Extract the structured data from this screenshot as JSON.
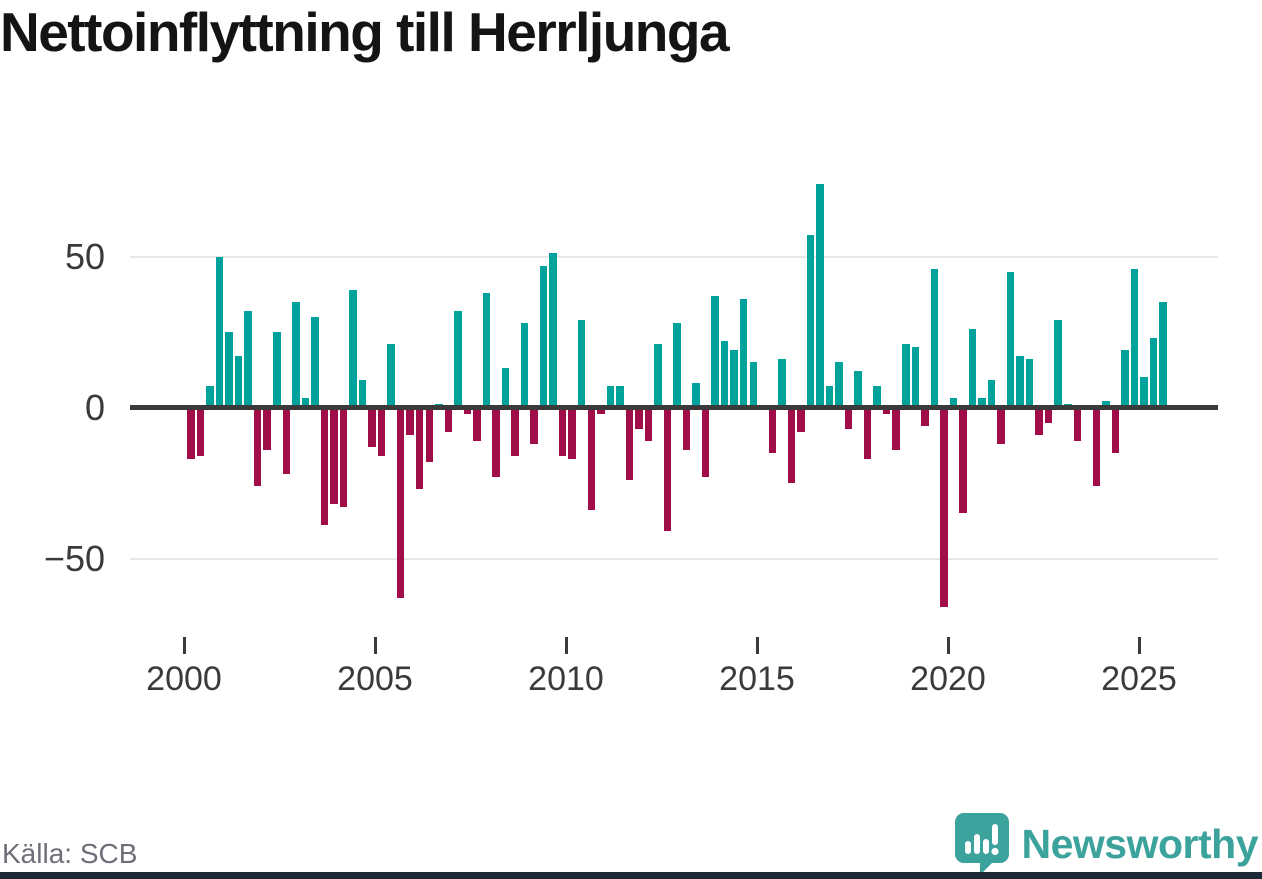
{
  "page": {
    "title": "Nettoinflyttning till Herrljunga",
    "source": "Källa: SCB"
  },
  "logo": {
    "brand": "Newsworthy",
    "icon": "newsworthy-speech-bubble-chart-icon"
  },
  "colors": {
    "positive_bar": "#00a39c",
    "negative_bar": "#a00d49",
    "axis": "#3a3a3a",
    "grid": "#e7e7e7",
    "labels": "#3a3a3a",
    "source_text": "#6f6f79",
    "brand_teal": "#3ba29c",
    "footer_bar": "#1d2935"
  },
  "chart_data": {
    "type": "bar",
    "title": "Nettoinflyttning till Herrljunga",
    "xlabel": "",
    "ylabel": "",
    "ylim": [
      -70,
      80
    ],
    "grid": "horizontal",
    "legend": "none",
    "bar_color_rule": "teal when positive, crimson when negative",
    "y_ticks": [
      {
        "label": "50",
        "value": 50
      },
      {
        "label": "0",
        "value": 0
      },
      {
        "label": "−50",
        "value": -50
      }
    ],
    "x_ticks": [
      "2000",
      "2005",
      "2010",
      "2015",
      "2020",
      "2025"
    ],
    "x": [
      "2000Q1",
      "2000Q2",
      "2000Q3",
      "2000Q4",
      "2001Q1",
      "2001Q2",
      "2001Q3",
      "2001Q4",
      "2002Q1",
      "2002Q2",
      "2002Q3",
      "2002Q4",
      "2003Q1",
      "2003Q2",
      "2003Q3",
      "2003Q4",
      "2004Q1",
      "2004Q2",
      "2004Q3",
      "2004Q4",
      "2005Q1",
      "2005Q2",
      "2005Q3",
      "2005Q4",
      "2006Q1",
      "2006Q2",
      "2006Q3",
      "2006Q4",
      "2007Q1",
      "2007Q2",
      "2007Q3",
      "2007Q4",
      "2008Q1",
      "2008Q2",
      "2008Q3",
      "2008Q4",
      "2009Q1",
      "2009Q2",
      "2009Q3",
      "2009Q4",
      "2010Q1",
      "2010Q2",
      "2010Q3",
      "2010Q4",
      "2011Q1",
      "2011Q2",
      "2011Q3",
      "2011Q4",
      "2012Q1",
      "2012Q2",
      "2012Q3",
      "2012Q4",
      "2013Q1",
      "2013Q2",
      "2013Q3",
      "2013Q4",
      "2014Q1",
      "2014Q2",
      "2014Q3",
      "2014Q4",
      "2015Q1",
      "2015Q2",
      "2015Q3",
      "2015Q4",
      "2016Q1",
      "2016Q2",
      "2016Q3",
      "2016Q4",
      "2017Q1",
      "2017Q2",
      "2017Q3",
      "2017Q4",
      "2018Q1",
      "2018Q2",
      "2018Q3",
      "2018Q4",
      "2019Q1",
      "2019Q2",
      "2019Q3",
      "2019Q4",
      "2020Q1",
      "2020Q2",
      "2020Q3",
      "2020Q4",
      "2021Q1",
      "2021Q2",
      "2021Q3",
      "2021Q4",
      "2022Q1",
      "2022Q2",
      "2022Q3",
      "2022Q4",
      "2023Q1",
      "2023Q2",
      "2023Q3",
      "2023Q4",
      "2024Q1",
      "2024Q2",
      "2024Q3",
      "2024Q4",
      "2025Q1",
      "2025Q2",
      "2025Q3"
    ],
    "values": [
      -17,
      -16,
      7,
      50,
      25,
      17,
      32,
      -26,
      -14,
      25,
      -22,
      35,
      3,
      30,
      -39,
      -32,
      -33,
      39,
      9,
      -13,
      -16,
      21,
      -63,
      -9,
      -27,
      -18,
      1,
      -8,
      32,
      -2,
      -11,
      38,
      -23,
      13,
      -16,
      28,
      -12,
      47,
      51,
      -16,
      -17,
      29,
      -34,
      -2,
      7,
      7,
      -24,
      -7,
      -11,
      21,
      -41,
      28,
      -14,
      8,
      -23,
      37,
      22,
      19,
      36,
      15,
      0,
      -15,
      16,
      -25,
      -8,
      57,
      74,
      7,
      15,
      -7,
      12,
      -17,
      7,
      -2,
      -14,
      21,
      20,
      -6,
      46,
      -66,
      3,
      -35,
      26,
      3,
      9,
      -12,
      45,
      17,
      16,
      -9,
      -5,
      29,
      1,
      -11,
      0,
      -26,
      2,
      -15,
      19,
      46,
      10,
      23,
      35
    ]
  }
}
